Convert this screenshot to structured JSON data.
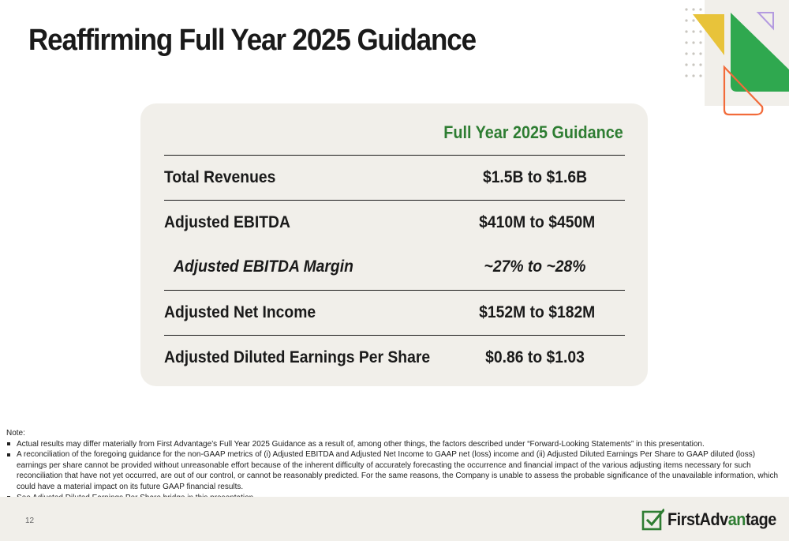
{
  "slide": {
    "title": "Reaffirming Full Year 2025 Guidance",
    "page_number": "12"
  },
  "table": {
    "column_header": "Full Year 2025 Guidance",
    "rows": [
      {
        "label": "Total Revenues",
        "value": "$1.5B to $1.6B",
        "italic": false
      },
      {
        "label": "Adjusted EBITDA",
        "value": "$410M to $450M",
        "italic": false
      },
      {
        "label": "Adjusted EBITDA Margin",
        "value": "~27% to ~28%",
        "italic": true
      },
      {
        "label": "Adjusted Net Income",
        "value": "$152M to $182M",
        "italic": false
      },
      {
        "label": "Adjusted Diluted Earnings Per Share",
        "value": "$0.86 to $1.03",
        "italic": false
      }
    ]
  },
  "notes": {
    "heading": "Note:",
    "items": [
      "Actual results may differ materially from First Advantage’s Full Year 2025 Guidance as a result of, among other things, the factors described under “Forward-Looking Statements” in this presentation.",
      "A reconciliation of the foregoing guidance for the non-GAAP metrics of (i) Adjusted EBITDA and Adjusted Net Income to GAAP net (loss) income and (ii) Adjusted Diluted Earnings Per Share to GAAP diluted (loss) earnings per share cannot be provided without unreasonable effort because of the inherent difficulty of accurately forecasting the occurrence and financial impact of the various adjusting items necessary for such reconciliation that have not yet occurred, are out of our control, or cannot be reasonably predicted. For the same reasons, the Company is unable to assess the probable significance of the unavailable information, which could have a material impact on its future GAAP financial results.",
      "See Adjusted Diluted Earnings Per Share bridge in this presentation."
    ]
  },
  "logo": {
    "text_prefix": "FirstAdv",
    "text_accent": "an",
    "text_suffix": "tage"
  },
  "colors": {
    "accent_green": "#2e7d32",
    "card_background": "#f1efea",
    "deco_yellow": "#e8c33a",
    "deco_orange": "#f26b3a",
    "deco_purple": "#b49be0"
  },
  "icons": {
    "logo_mark": "first-advantage-check-icon",
    "corner_decoration": "geometric-shapes-decoration"
  }
}
